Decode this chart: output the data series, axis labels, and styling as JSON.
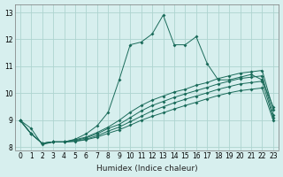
{
  "xlabel": "Humidex (Indice chaleur)",
  "ylabel": "",
  "background_color": "#d7efee",
  "grid_color": "#aed4d0",
  "line_color": "#1a6b5a",
  "xlim": [
    -0.5,
    23.5
  ],
  "ylim": [
    7.9,
    13.3
  ],
  "xticks": [
    0,
    1,
    2,
    3,
    4,
    5,
    6,
    7,
    8,
    9,
    10,
    11,
    12,
    13,
    14,
    15,
    16,
    17,
    18,
    19,
    20,
    21,
    22,
    23
  ],
  "yticks": [
    8,
    9,
    10,
    11,
    12,
    13
  ],
  "series": [
    [
      9.0,
      8.7,
      8.1,
      8.2,
      8.2,
      8.3,
      8.5,
      8.8,
      9.3,
      10.5,
      11.8,
      11.9,
      12.2,
      12.9,
      11.8,
      11.8,
      12.1,
      11.1,
      10.5,
      10.5,
      10.6,
      10.7,
      10.5,
      9.5
    ],
    [
      9.0,
      8.5,
      8.15,
      8.2,
      8.2,
      8.28,
      8.38,
      8.55,
      8.75,
      9.0,
      9.3,
      9.55,
      9.75,
      9.9,
      10.05,
      10.15,
      10.3,
      10.4,
      10.55,
      10.65,
      10.75,
      10.8,
      10.85,
      9.4
    ],
    [
      9.0,
      8.5,
      8.15,
      8.2,
      8.2,
      8.25,
      8.35,
      8.5,
      8.7,
      8.85,
      9.1,
      9.35,
      9.55,
      9.7,
      9.85,
      9.98,
      10.1,
      10.22,
      10.35,
      10.45,
      10.55,
      10.6,
      10.65,
      9.2
    ],
    [
      9.0,
      8.5,
      8.15,
      8.2,
      8.2,
      8.23,
      8.3,
      8.43,
      8.6,
      8.75,
      8.95,
      9.15,
      9.35,
      9.5,
      9.65,
      9.78,
      9.9,
      10.02,
      10.15,
      10.25,
      10.35,
      10.4,
      10.45,
      9.1
    ],
    [
      9.0,
      8.5,
      8.15,
      8.2,
      8.2,
      8.22,
      8.28,
      8.38,
      8.52,
      8.65,
      8.82,
      9.0,
      9.15,
      9.28,
      9.42,
      9.55,
      9.67,
      9.8,
      9.92,
      10.02,
      10.1,
      10.15,
      10.2,
      9.0
    ]
  ]
}
